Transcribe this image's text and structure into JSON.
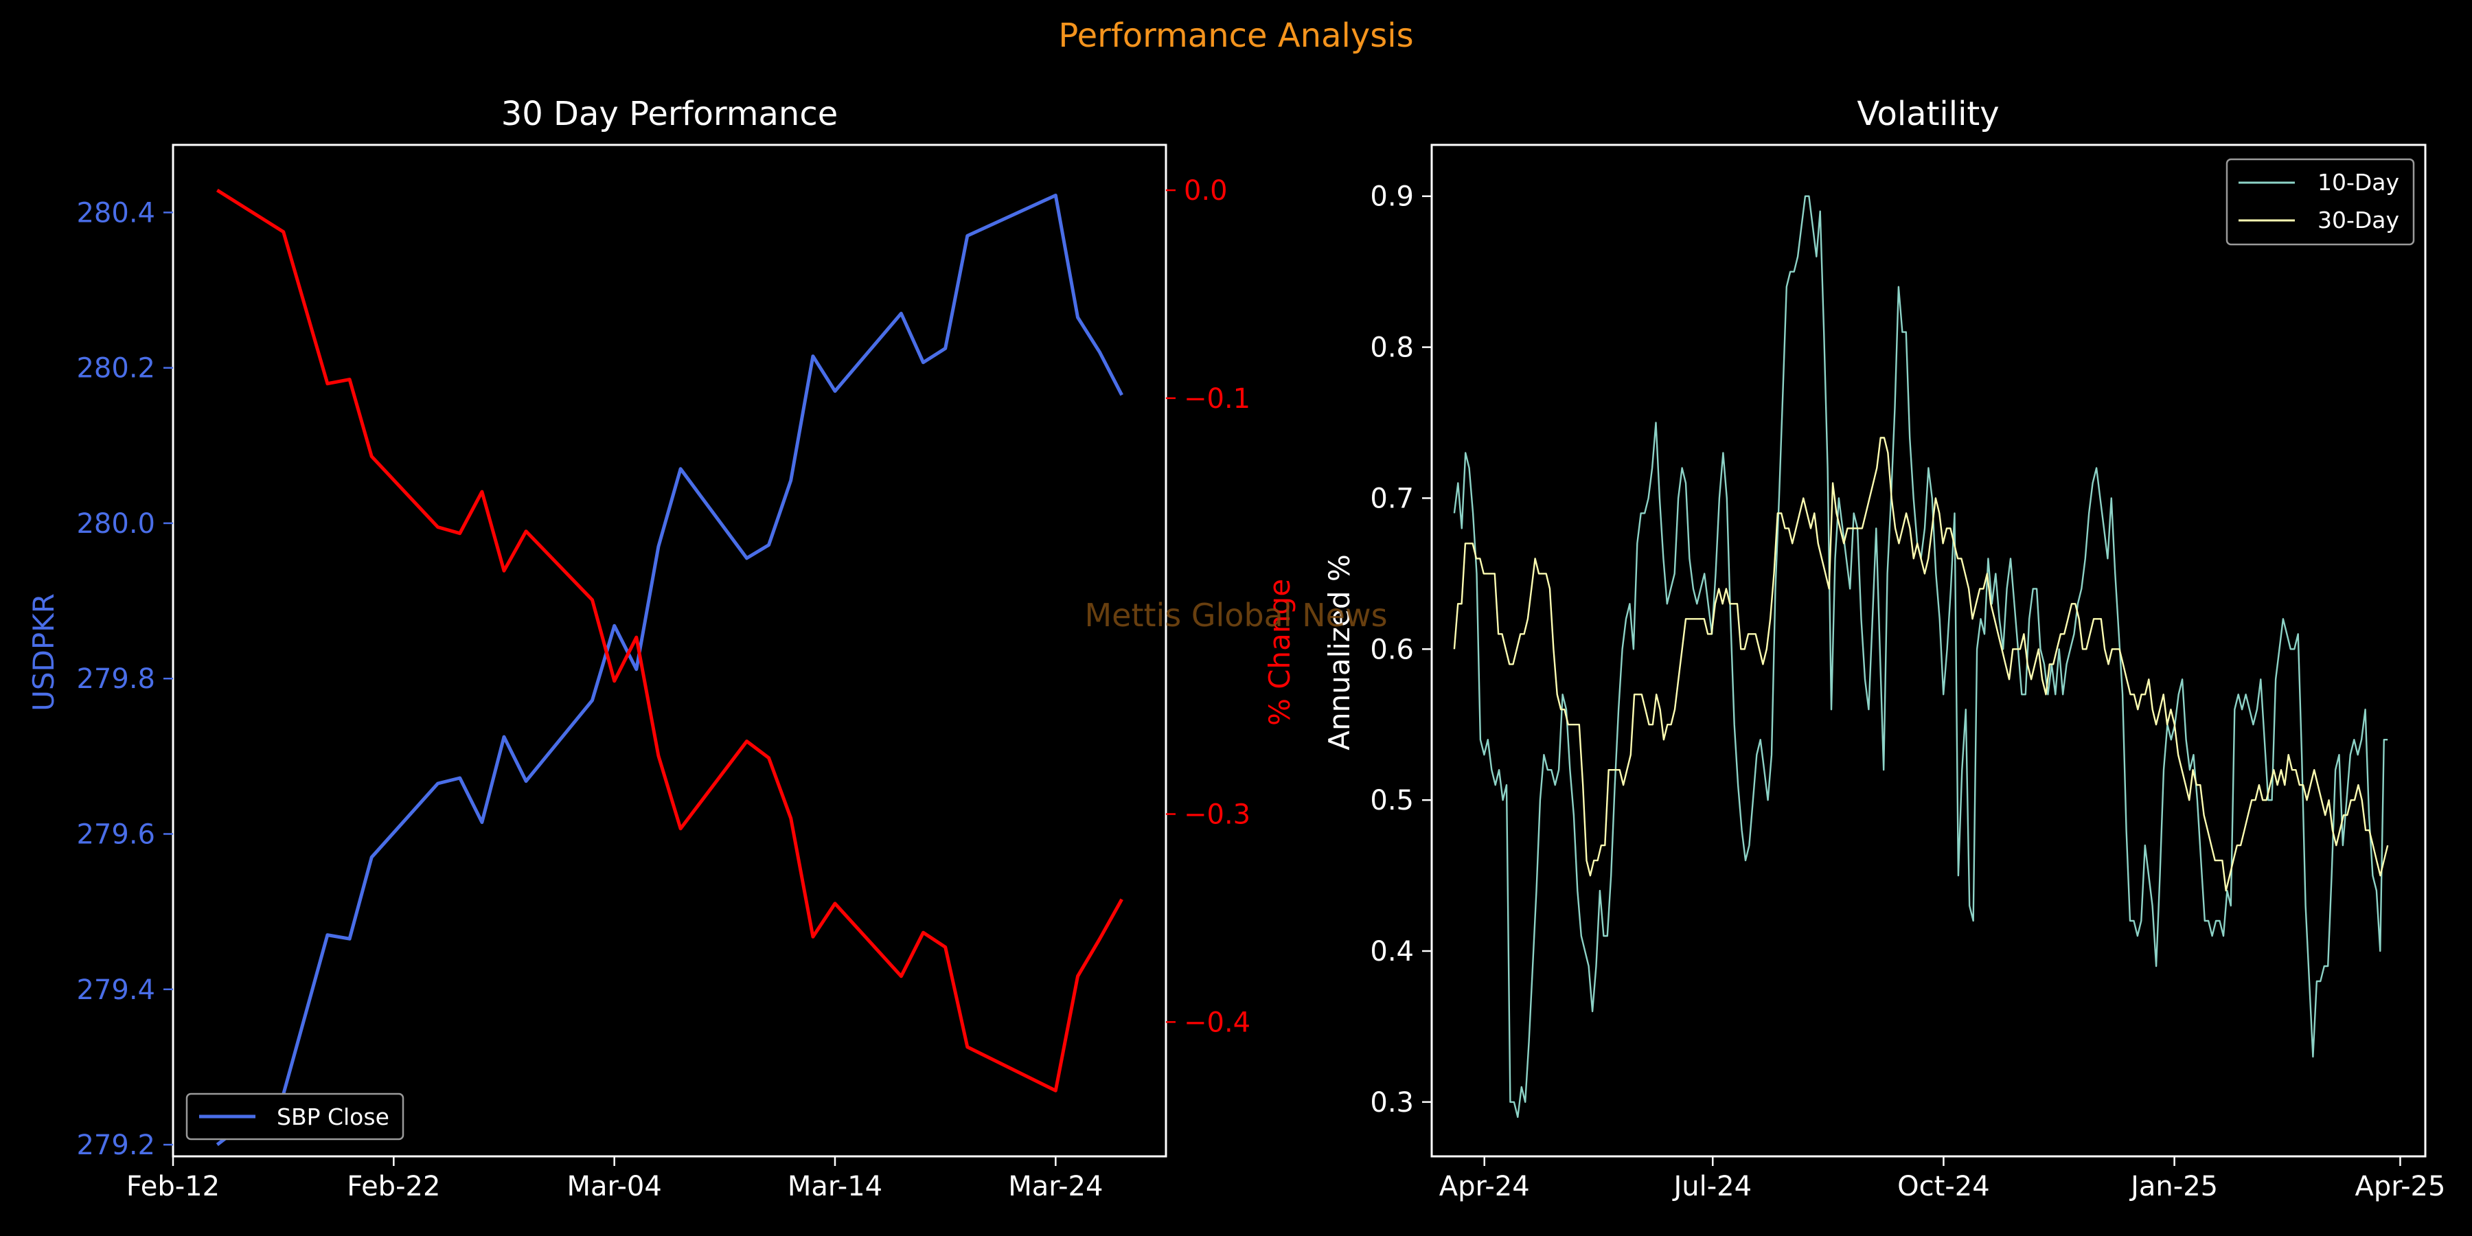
{
  "title": "Performance Analysis",
  "watermark": "Mettis Global News",
  "colors": {
    "background": "#000000",
    "title": "#f5941d",
    "watermark": "#7a4a12",
    "usd": "#4a6ee8",
    "pct": "#ff0000",
    "vol10": "#8dd3c7",
    "vol30": "#ffffb3",
    "axis": "#ffffff"
  },
  "chart_data": [
    {
      "type": "line",
      "title": "30 Day Performance",
      "xlabel": "",
      "ylabel": "USDPKR",
      "y2label": "% Change",
      "xticks": [
        "Feb-12",
        "Feb-22",
        "Mar-04",
        "Mar-14",
        "Mar-24"
      ],
      "xlim": [
        "2025-02-12",
        "2025-03-29"
      ],
      "ylim": [
        279.185,
        280.487
      ],
      "yticks": [
        279.2,
        279.4,
        279.6,
        279.8,
        280.0,
        280.2,
        280.4
      ],
      "y2lim": [
        -0.4646,
        0.0218
      ],
      "y2ticks": [
        0.0,
        -0.1,
        -0.3,
        -0.4
      ],
      "legend": {
        "position": "bottom-left",
        "entries": [
          "SBP Close"
        ]
      },
      "x": [
        "2025-02-14",
        "2025-02-17",
        "2025-02-19",
        "2025-02-20",
        "2025-02-21",
        "2025-02-24",
        "2025-02-25",
        "2025-02-26",
        "2025-02-27",
        "2025-02-28",
        "2025-03-03",
        "2025-03-04",
        "2025-03-05",
        "2025-03-06",
        "2025-03-07",
        "2025-03-10",
        "2025-03-11",
        "2025-03-12",
        "2025-03-13",
        "2025-03-14",
        "2025-03-17",
        "2025-03-18",
        "2025-03-19",
        "2025-03-20",
        "2025-03-24",
        "2025-03-25",
        "2025-03-26",
        "2025-03-27"
      ],
      "series": [
        {
          "name": "SBP Close",
          "axis": "left",
          "values": [
            279.2,
            279.265,
            279.47,
            279.465,
            279.57,
            279.665,
            279.672,
            279.615,
            279.725,
            279.668,
            279.772,
            279.868,
            279.812,
            279.97,
            280.07,
            279.955,
            279.972,
            280.055,
            280.215,
            280.17,
            280.27,
            280.207,
            280.225,
            280.37,
            280.422,
            280.265,
            280.22,
            280.165
          ]
        },
        {
          "name": "% Change",
          "axis": "right",
          "values": [
            0.0,
            -0.02,
            -0.093,
            -0.091,
            -0.128,
            -0.162,
            -0.165,
            -0.145,
            -0.183,
            -0.164,
            -0.197,
            -0.236,
            -0.215,
            -0.272,
            -0.307,
            -0.265,
            -0.273,
            -0.302,
            -0.359,
            -0.343,
            -0.378,
            -0.357,
            -0.364,
            -0.412,
            -0.433,
            -0.378,
            -0.36,
            -0.341
          ]
        }
      ]
    },
    {
      "type": "line",
      "title": "Volatility",
      "xlabel": "",
      "ylabel": "Annualized %",
      "xticks": [
        "Apr-24",
        "Jul-24",
        "Oct-24",
        "Jan-25",
        "Apr-25"
      ],
      "xlim": [
        "2024-03-11",
        "2025-04-11"
      ],
      "ylim": [
        0.264,
        0.934
      ],
      "yticks": [
        0.3,
        0.4,
        0.5,
        0.6,
        0.7,
        0.8,
        0.9
      ],
      "legend": {
        "position": "top-right",
        "entries": [
          "10-Day",
          "30-Day"
        ]
      },
      "series": [
        {
          "name": "10-Day",
          "x_start": "2024-03-20",
          "x_end": "2025-03-27",
          "values": [
            0.69,
            0.71,
            0.68,
            0.73,
            0.72,
            0.69,
            0.65,
            0.54,
            0.53,
            0.54,
            0.52,
            0.51,
            0.52,
            0.5,
            0.51,
            0.3,
            0.3,
            0.29,
            0.31,
            0.3,
            0.34,
            0.39,
            0.44,
            0.5,
            0.53,
            0.52,
            0.52,
            0.51,
            0.52,
            0.57,
            0.56,
            0.52,
            0.49,
            0.44,
            0.41,
            0.4,
            0.39,
            0.36,
            0.39,
            0.44,
            0.41,
            0.41,
            0.45,
            0.51,
            0.56,
            0.6,
            0.62,
            0.63,
            0.6,
            0.67,
            0.69,
            0.69,
            0.7,
            0.72,
            0.75,
            0.7,
            0.66,
            0.63,
            0.64,
            0.65,
            0.7,
            0.72,
            0.71,
            0.66,
            0.64,
            0.63,
            0.64,
            0.65,
            0.63,
            0.61,
            0.65,
            0.7,
            0.73,
            0.7,
            0.62,
            0.55,
            0.51,
            0.48,
            0.46,
            0.47,
            0.5,
            0.53,
            0.54,
            0.52,
            0.5,
            0.53,
            0.64,
            0.7,
            0.77,
            0.84,
            0.85,
            0.85,
            0.86,
            0.88,
            0.9,
            0.9,
            0.88,
            0.86,
            0.89,
            0.81,
            0.72,
            0.56,
            0.66,
            0.7,
            0.68,
            0.66,
            0.64,
            0.69,
            0.68,
            0.62,
            0.58,
            0.56,
            0.62,
            0.68,
            0.6,
            0.52,
            0.65,
            0.7,
            0.76,
            0.84,
            0.81,
            0.81,
            0.74,
            0.7,
            0.67,
            0.66,
            0.68,
            0.72,
            0.7,
            0.65,
            0.62,
            0.57,
            0.6,
            0.64,
            0.69,
            0.45,
            0.52,
            0.56,
            0.43,
            0.42,
            0.6,
            0.62,
            0.61,
            0.66,
            0.63,
            0.65,
            0.62,
            0.6,
            0.64,
            0.66,
            0.63,
            0.6,
            0.57,
            0.57,
            0.62,
            0.64,
            0.64,
            0.6,
            0.59,
            0.57,
            0.59,
            0.57,
            0.6,
            0.57,
            0.59,
            0.6,
            0.61,
            0.63,
            0.64,
            0.66,
            0.69,
            0.71,
            0.72,
            0.7,
            0.68,
            0.66,
            0.7,
            0.65,
            0.61,
            0.57,
            0.48,
            0.42,
            0.42,
            0.41,
            0.42,
            0.47,
            0.45,
            0.43,
            0.39,
            0.45,
            0.52,
            0.55,
            0.54,
            0.55,
            0.57,
            0.58,
            0.54,
            0.52,
            0.53,
            0.5,
            0.46,
            0.42,
            0.42,
            0.41,
            0.42,
            0.42,
            0.41,
            0.44,
            0.43,
            0.56,
            0.57,
            0.56,
            0.57,
            0.56,
            0.55,
            0.56,
            0.58,
            0.54,
            0.5,
            0.5,
            0.58,
            0.6,
            0.62,
            0.61,
            0.6,
            0.6,
            0.61,
            0.53,
            0.43,
            0.38,
            0.33,
            0.38,
            0.38,
            0.39,
            0.39,
            0.45,
            0.52,
            0.53,
            0.47,
            0.5,
            0.53,
            0.54,
            0.53,
            0.54,
            0.56,
            0.49,
            0.45,
            0.44,
            0.4,
            0.54,
            0.54
          ]
        },
        {
          "name": "30-Day",
          "x_start": "2024-03-20",
          "x_end": "2025-03-27",
          "values": [
            0.6,
            0.63,
            0.63,
            0.67,
            0.67,
            0.67,
            0.66,
            0.66,
            0.65,
            0.65,
            0.65,
            0.65,
            0.61,
            0.61,
            0.6,
            0.59,
            0.59,
            0.6,
            0.61,
            0.61,
            0.62,
            0.64,
            0.66,
            0.65,
            0.65,
            0.65,
            0.64,
            0.6,
            0.57,
            0.56,
            0.56,
            0.55,
            0.55,
            0.55,
            0.55,
            0.51,
            0.46,
            0.45,
            0.46,
            0.46,
            0.47,
            0.47,
            0.52,
            0.52,
            0.52,
            0.52,
            0.51,
            0.52,
            0.53,
            0.57,
            0.57,
            0.57,
            0.56,
            0.55,
            0.55,
            0.57,
            0.56,
            0.54,
            0.55,
            0.55,
            0.56,
            0.58,
            0.6,
            0.62,
            0.62,
            0.62,
            0.62,
            0.62,
            0.62,
            0.61,
            0.61,
            0.63,
            0.64,
            0.63,
            0.64,
            0.63,
            0.63,
            0.63,
            0.6,
            0.6,
            0.61,
            0.61,
            0.61,
            0.6,
            0.59,
            0.6,
            0.62,
            0.65,
            0.69,
            0.69,
            0.68,
            0.68,
            0.67,
            0.68,
            0.69,
            0.7,
            0.69,
            0.68,
            0.69,
            0.67,
            0.66,
            0.65,
            0.64,
            0.71,
            0.69,
            0.68,
            0.67,
            0.68,
            0.68,
            0.68,
            0.68,
            0.68,
            0.69,
            0.7,
            0.71,
            0.72,
            0.74,
            0.74,
            0.73,
            0.7,
            0.68,
            0.67,
            0.68,
            0.69,
            0.68,
            0.66,
            0.67,
            0.66,
            0.65,
            0.66,
            0.68,
            0.7,
            0.69,
            0.67,
            0.68,
            0.68,
            0.67,
            0.66,
            0.66,
            0.65,
            0.64,
            0.62,
            0.63,
            0.64,
            0.64,
            0.65,
            0.63,
            0.62,
            0.61,
            0.6,
            0.59,
            0.58,
            0.6,
            0.6,
            0.6,
            0.61,
            0.59,
            0.58,
            0.59,
            0.6,
            0.58,
            0.57,
            0.59,
            0.59,
            0.6,
            0.61,
            0.61,
            0.62,
            0.63,
            0.63,
            0.62,
            0.6,
            0.6,
            0.61,
            0.62,
            0.62,
            0.62,
            0.6,
            0.59,
            0.6,
            0.6,
            0.6,
            0.59,
            0.58,
            0.57,
            0.57,
            0.56,
            0.57,
            0.57,
            0.58,
            0.56,
            0.55,
            0.56,
            0.57,
            0.55,
            0.56,
            0.55,
            0.53,
            0.52,
            0.51,
            0.5,
            0.52,
            0.51,
            0.51,
            0.49,
            0.48,
            0.47,
            0.46,
            0.46,
            0.46,
            0.44,
            0.45,
            0.46,
            0.47,
            0.47,
            0.48,
            0.49,
            0.5,
            0.5,
            0.51,
            0.5,
            0.5,
            0.51,
            0.52,
            0.51,
            0.52,
            0.51,
            0.53,
            0.52,
            0.52,
            0.51,
            0.51,
            0.5,
            0.51,
            0.52,
            0.51,
            0.5,
            0.49,
            0.5,
            0.48,
            0.47,
            0.48,
            0.49,
            0.49,
            0.5,
            0.5,
            0.51,
            0.5,
            0.48,
            0.48,
            0.47,
            0.46,
            0.45,
            0.46,
            0.47
          ]
        }
      ]
    }
  ]
}
